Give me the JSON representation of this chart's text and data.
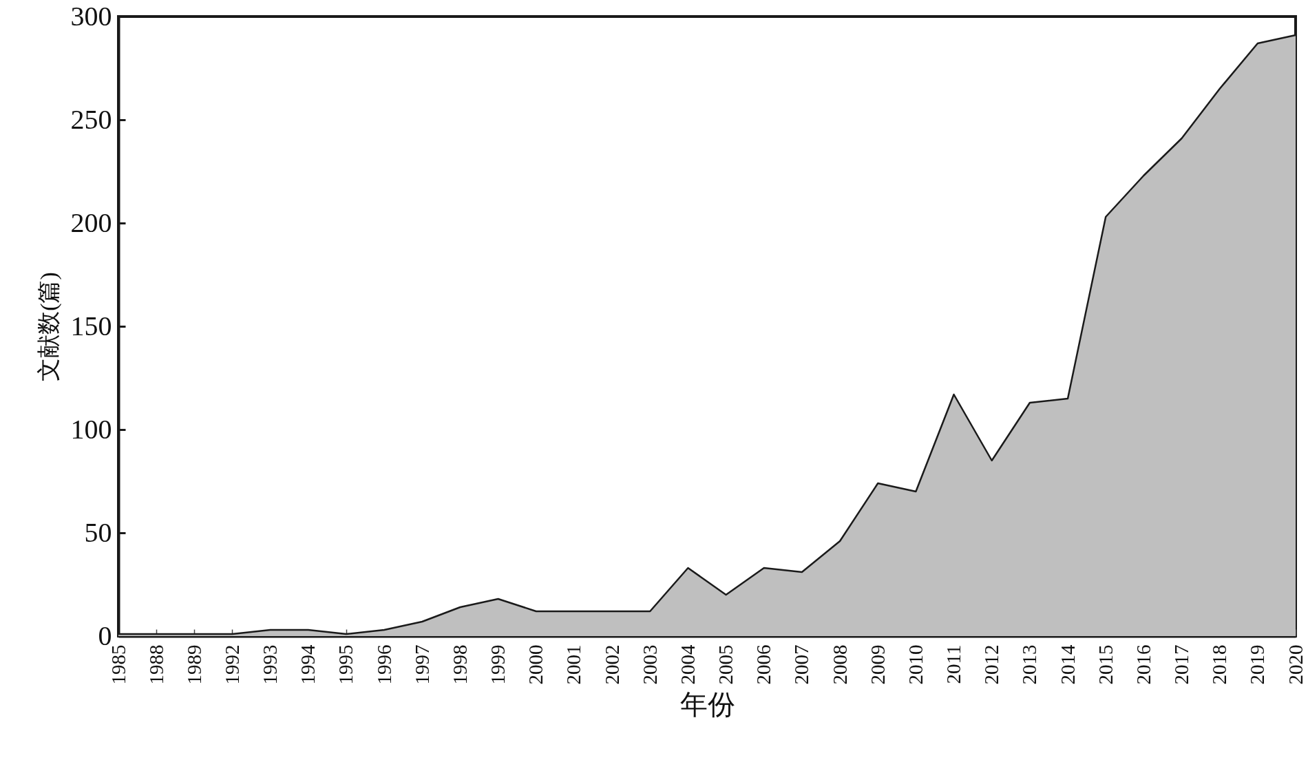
{
  "chart_data": {
    "type": "area",
    "xlabel": "年份",
    "ylabel": "文献数(篇)",
    "categories": [
      "1985",
      "1988",
      "1989",
      "1992",
      "1993",
      "1994",
      "1995",
      "1996",
      "1997",
      "1998",
      "1999",
      "2000",
      "2001",
      "2002",
      "2003",
      "2004",
      "2005",
      "2006",
      "2007",
      "2008",
      "2009",
      "2010",
      "2011",
      "2012",
      "2013",
      "2014",
      "2015",
      "2016",
      "2017",
      "2018",
      "2019",
      "2020"
    ],
    "series": [
      {
        "color": "#bfbfbf",
        "values": [
          1,
          1,
          1,
          1,
          3,
          3,
          1,
          3,
          7,
          14,
          18,
          12,
          12,
          12,
          12,
          33,
          20,
          33,
          31,
          46,
          74,
          70,
          117,
          85,
          113,
          115,
          203,
          223,
          241,
          265,
          287,
          291
        ]
      }
    ],
    "ylim": [
      0,
      300
    ],
    "yticks": [
      0,
      50,
      100,
      150,
      200,
      250,
      300
    ]
  }
}
